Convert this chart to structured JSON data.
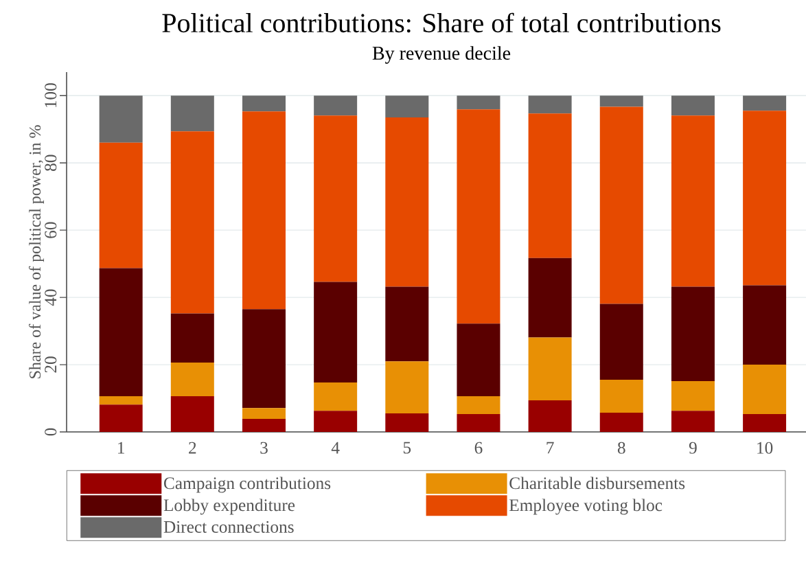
{
  "chart_data": {
    "type": "bar",
    "title": "Political contributions: Share of total contributions",
    "subtitle": "By revenue decile",
    "ylabel": "Share of value of political power, in %",
    "categories": [
      "1",
      "2",
      "3",
      "4",
      "5",
      "6",
      "7",
      "8",
      "9",
      "10"
    ],
    "stacked": true,
    "ylim": [
      0,
      107
    ],
    "yticks": [
      0,
      20,
      40,
      60,
      80,
      100
    ],
    "grid": "y",
    "legend": "bottom",
    "series": [
      {
        "name": "Campaign contributions",
        "color": "#990000",
        "values": [
          8.1,
          10.6,
          3.9,
          6.3,
          5.5,
          5.3,
          9.4,
          5.7,
          6.3,
          5.3
        ]
      },
      {
        "name": "Charitable disbursements",
        "color": "#e89005",
        "values": [
          2.5,
          10.0,
          3.2,
          8.4,
          15.5,
          5.3,
          18.7,
          9.8,
          8.8,
          14.7
        ]
      },
      {
        "name": "Lobby expenditure",
        "color": "#5a0000",
        "values": [
          38.1,
          14.6,
          29.4,
          29.9,
          22.2,
          21.6,
          23.6,
          22.6,
          28.1,
          23.6
        ]
      },
      {
        "name": "Employee voting bloc",
        "color": "#e64a00",
        "values": [
          37.3,
          54.2,
          58.8,
          49.5,
          50.3,
          63.7,
          43.0,
          58.6,
          50.9,
          51.9
        ]
      },
      {
        "name": "Direct connections",
        "color": "#6a6a6a",
        "values": [
          14.0,
          10.6,
          4.7,
          5.9,
          6.5,
          4.1,
          5.3,
          3.3,
          5.9,
          4.5
        ]
      }
    ]
  }
}
